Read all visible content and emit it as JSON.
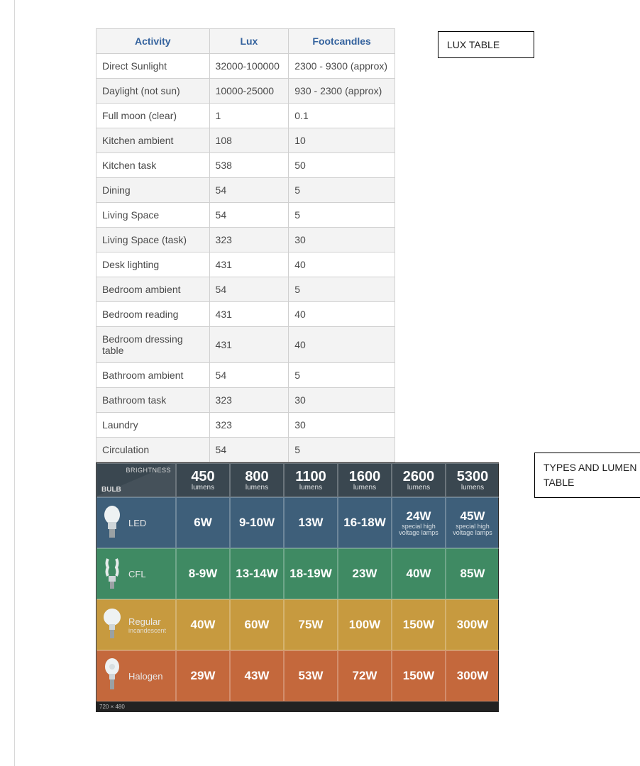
{
  "labels": {
    "lux_label": "LUX TABLE",
    "lumen_label": "TYPES AND LUMEN TABLE"
  },
  "lux_table": {
    "columns": [
      "Activity",
      "Lux",
      "Footcandles"
    ],
    "rows": [
      [
        "Direct Sunlight",
        "32000-100000",
        "2300 - 9300 (approx)"
      ],
      [
        "Daylight (not sun)",
        "10000-25000",
        "930 - 2300 (approx)"
      ],
      [
        "Full moon (clear)",
        "1",
        "0.1"
      ],
      [
        "Kitchen ambient",
        "108",
        "10"
      ],
      [
        "Kitchen task",
        "538",
        "50"
      ],
      [
        "Dining",
        "54",
        "5"
      ],
      [
        "Living Space",
        "54",
        "5"
      ],
      [
        "Living Space (task)",
        "323",
        "30"
      ],
      [
        "Desk lighting",
        "431",
        "40"
      ],
      [
        "Bedroom ambient",
        "54",
        "5"
      ],
      [
        "Bedroom reading",
        "431",
        "40"
      ],
      [
        "Bedroom dressing table",
        "431",
        "40"
      ],
      [
        "Bathroom ambient",
        "54",
        "5"
      ],
      [
        "Bathroom task",
        "323",
        "30"
      ],
      [
        "Laundry",
        "323",
        "30"
      ],
      [
        "Circulation",
        "54",
        "5"
      ]
    ],
    "header_color": "#35639e",
    "header_bg": "#f4f4f4",
    "row_alt_bg": "#f3f3f3",
    "border_color": "#d0d0d0",
    "font_size": 14
  },
  "lumen_table": {
    "header_bg": "#3a4750",
    "brightness_label": "BRIGHTNESS",
    "bulb_label": "BULB",
    "lumens_word": "lumens",
    "special_note": "special high voltage lamps",
    "footer_tag": "720 × 480",
    "lumen_cols": [
      "450",
      "800",
      "1100",
      "1600",
      "2600",
      "5300"
    ],
    "rows": [
      {
        "name": "LED",
        "sub": "",
        "bg": "#3e5f7a",
        "values": [
          "6W",
          "9-10W",
          "13W",
          "16-18W",
          "24W",
          "45W"
        ],
        "note_span": true
      },
      {
        "name": "CFL",
        "sub": "",
        "bg": "#3f8a63",
        "values": [
          "8-9W",
          "13-14W",
          "18-19W",
          "23W",
          "40W",
          "85W"
        ]
      },
      {
        "name": "Regular",
        "sub": "incandescent",
        "bg": "#c79a3f",
        "values": [
          "40W",
          "60W",
          "75W",
          "100W",
          "150W",
          "300W"
        ]
      },
      {
        "name": "Halogen",
        "sub": "",
        "bg": "#c4683c",
        "values": [
          "29W",
          "43W",
          "53W",
          "72W",
          "150W",
          "300W"
        ]
      }
    ],
    "big_fontsize": 20,
    "watt_fontsize": 17,
    "text_color": "#ffffff",
    "cell_border": "rgba(255,255,255,0.25)"
  }
}
